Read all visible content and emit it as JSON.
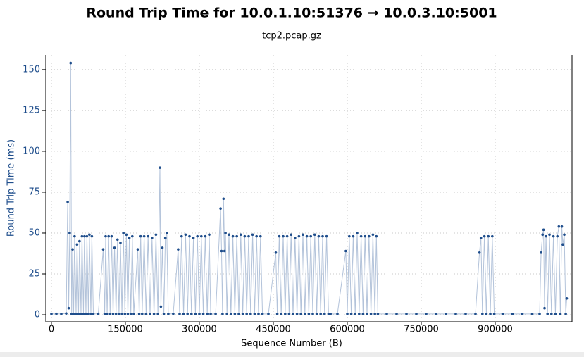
{
  "chart_data": {
    "type": "line",
    "title": "Round Trip Time for 10.0.1.10:51376 → 10.0.3.10:5001",
    "subtitle": "tcp2.pcap.gz",
    "x_label": "Sequence Number (B)",
    "y_label": "Round Trip Time (ms)",
    "x": [
      0,
      10000,
      20000,
      30000,
      33000,
      35000,
      37000,
      39000,
      41000,
      43000,
      45000,
      47000,
      50000,
      52000,
      55000,
      57000,
      60000,
      62000,
      65000,
      67000,
      70000,
      72000,
      75000,
      77000,
      80000,
      82000,
      85000,
      95000,
      105000,
      108000,
      110000,
      113000,
      116000,
      119000,
      122000,
      125000,
      128000,
      131000,
      134000,
      137000,
      140000,
      143000,
      146000,
      149000,
      152000,
      155000,
      158000,
      161000,
      164000,
      167000,
      175000,
      178000,
      181000,
      184000,
      188000,
      192000,
      196000,
      200000,
      204000,
      208000,
      212000,
      216000,
      220000,
      222000,
      225000,
      228000,
      231000,
      234000,
      237000,
      247000,
      257000,
      260000,
      264000,
      268000,
      272000,
      276000,
      280000,
      284000,
      288000,
      292000,
      296000,
      300000,
      304000,
      308000,
      312000,
      316000,
      320000,
      323000,
      333000,
      343000,
      345000,
      347000,
      349000,
      351000,
      353000,
      356000,
      360000,
      364000,
      368000,
      372000,
      376000,
      380000,
      384000,
      388000,
      392000,
      396000,
      400000,
      404000,
      408000,
      412000,
      416000,
      420000,
      424000,
      428000,
      440000,
      455000,
      458000,
      462000,
      466000,
      470000,
      474000,
      478000,
      482000,
      486000,
      490000,
      494000,
      498000,
      502000,
      506000,
      510000,
      514000,
      518000,
      522000,
      526000,
      530000,
      534000,
      538000,
      542000,
      546000,
      550000,
      554000,
      558000,
      562000,
      566000,
      580000,
      597000,
      600000,
      604000,
      608000,
      612000,
      616000,
      620000,
      624000,
      628000,
      632000,
      636000,
      640000,
      644000,
      648000,
      652000,
      656000,
      659000,
      662000,
      680000,
      700000,
      720000,
      740000,
      760000,
      780000,
      800000,
      820000,
      840000,
      860000,
      868000,
      871000,
      874000,
      878000,
      882000,
      886000,
      890000,
      894000,
      898000,
      915000,
      935000,
      955000,
      975000,
      990000,
      993000,
      996000,
      998000,
      1000000,
      1003000,
      1006000,
      1010000,
      1014000,
      1018000,
      1022000,
      1026000,
      1029000,
      1032000,
      1035000,
      1037000,
      1040000,
      1043000,
      1045000
    ],
    "series": [
      {
        "name": "RTT",
        "color": "#1f4e8c",
        "line_color": "#b3c3da",
        "values": [
          0.5,
          0.6,
          0.5,
          0.8,
          69,
          4,
          50,
          154,
          0.5,
          40,
          0.5,
          48,
          0.5,
          43,
          0.5,
          45,
          0.5,
          48,
          0.5,
          48,
          0.6,
          48,
          0.5,
          49,
          0.5,
          48,
          0.5,
          0.6,
          40,
          0.5,
          48,
          0.5,
          48,
          0.5,
          48,
          0.5,
          41,
          0.5,
          46,
          0.5,
          44,
          0.5,
          50,
          0.5,
          49,
          0.5,
          47,
          0.5,
          48,
          0.5,
          40,
          0.5,
          48,
          0.5,
          48,
          0.5,
          48,
          0.5,
          47,
          0.5,
          49,
          0.5,
          90,
          5,
          41,
          0.5,
          47,
          50,
          0.5,
          0.6,
          40,
          0.5,
          48,
          0.5,
          49,
          0.5,
          48,
          0.5,
          47,
          0.5,
          48,
          0.5,
          48,
          0.5,
          48,
          0.5,
          49,
          0.5,
          0.5,
          65,
          39,
          0.5,
          71,
          39,
          50,
          0.5,
          49,
          0.5,
          48,
          0.5,
          48,
          0.5,
          49,
          0.5,
          48,
          0.5,
          48,
          0.5,
          49,
          0.5,
          48,
          0.5,
          48,
          0.5,
          0.5,
          38,
          0.5,
          48,
          0.5,
          48,
          0.5,
          48,
          0.5,
          49,
          0.5,
          47,
          0.5,
          48,
          0.5,
          49,
          0.5,
          48,
          0.5,
          48,
          0.5,
          49,
          0.5,
          48,
          0.5,
          48,
          0.5,
          48,
          0.5,
          0.5,
          0.5,
          39,
          0.5,
          48,
          0.5,
          48,
          0.5,
          50,
          0.5,
          48,
          0.5,
          48,
          0.5,
          48,
          0.5,
          49,
          0.5,
          48,
          0.5,
          0.5,
          0.5,
          0.5,
          0.5,
          0.5,
          0.5,
          0.5,
          0.5,
          0.5,
          0.5,
          38,
          47,
          0.5,
          48,
          0.5,
          48,
          0.5,
          48,
          0.5,
          0.5,
          0.5,
          0.5,
          0.5,
          0.5,
          38,
          49,
          52,
          4,
          48,
          0.5,
          49,
          0.5,
          48,
          0.5,
          48,
          54,
          0.5,
          54,
          43,
          49,
          0.5,
          10
        ]
      }
    ],
    "xlim": [
      -11400,
      1055700
    ],
    "ylim": [
      -4.3,
      159
    ],
    "xticks": [
      0,
      150000,
      300000,
      450000,
      600000,
      750000,
      900000
    ],
    "yticks": [
      0,
      25,
      50,
      75,
      100,
      125,
      150
    ],
    "grid": true
  }
}
